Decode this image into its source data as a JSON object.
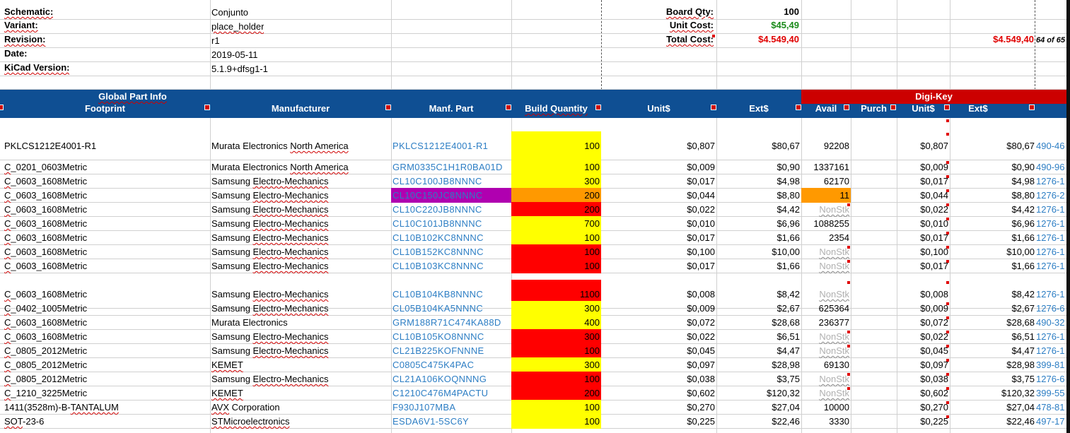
{
  "summary": {
    "schematic_label": "Schematic:",
    "schematic": "Conjunto",
    "variant_label": "Variant:",
    "variant": "place_holder",
    "revision_label": "Revision:",
    "revision": "r1",
    "date_label": "Date:",
    "date": "2019-05-11",
    "kicad_label": "KiCad Version:",
    "kicad": "5.1.9+dfsg1-1",
    "board_qty_label": "Board Qty:",
    "board_qty": "100",
    "unit_cost_label": "Unit Cost:",
    "unit_cost": "$45,49",
    "total_cost_label": "Total Cost:",
    "total_cost": "$4.549,40",
    "dk_total": "$4.549,40",
    "dk_count": "64 of 65"
  },
  "groups": {
    "global": "Global Part Info",
    "digikey": "Digi-Key"
  },
  "headers": {
    "footprint": "Footprint",
    "manufacturer": "Manufacturer",
    "manf_part": "Manf. Part",
    "build_qty": "Build Quantity",
    "unit": "Unit$",
    "ext": "Ext$",
    "avail": "Avail",
    "purch": "Purch",
    "dk_unit": "Unit$",
    "dk_ext": "Ext$"
  },
  "colors": {
    "header_blue": "#0f4f93",
    "digikey_red": "#cc0000",
    "qty_yellow": "#ffff00",
    "qty_red": "#ff0000",
    "qty_orange": "#ff9900",
    "part_magenta": "#b000b0",
    "link_blue": "#2d7ec4"
  },
  "rows": [
    {
      "fp": "PKLCS1212E4001-R1",
      "mfr": "Murata Electronics North America",
      "mpn": "PKLCS1212E4001-R1",
      "qty": "100",
      "unit": "$0,807",
      "ext": "$80,67",
      "avail": "92208",
      "dkunit": "$0,807",
      "dkext": "$80,67",
      "cat": "490-46",
      "qtyColor": "yellow"
    },
    {
      "fp": "C_0201_0603Metric",
      "mfr": "Murata Electronics North America",
      "mpn": "GRM0335C1H1R0BA01D",
      "qty": "100",
      "unit": "$0,009",
      "ext": "$0,90",
      "avail": "1337161",
      "dkunit": "$0,009",
      "dkext": "$0,90",
      "cat": "490-96",
      "qtyColor": "yellow"
    },
    {
      "fp": "C_0603_1608Metric",
      "mfr": "Samsung Electro-Mechanics",
      "mpn": "CL10C100JB8NNNC",
      "qty": "300",
      "unit": "$0,017",
      "ext": "$4,98",
      "avail": "62170",
      "dkunit": "$0,017",
      "dkext": "$4,98",
      "cat": "1276-1",
      "qtyColor": "yellow"
    },
    {
      "fp": "C_0603_1608Metric",
      "mfr": "Samsung Electro-Mechanics",
      "mpn": "CL10C150JC8NNNC",
      "qty": "200",
      "unit": "$0,044",
      "ext": "$8,80",
      "avail": "11",
      "dkunit": "$0,044",
      "dkext": "$8,80",
      "cat": "1276-2",
      "qtyColor": "orange",
      "mpnMagenta": true
    },
    {
      "fp": "C_0603_1608Metric",
      "mfr": "Samsung Electro-Mechanics",
      "mpn": "CL10C220JB8NNNC",
      "qty": "200",
      "unit": "$0,022",
      "ext": "$4,42",
      "avail": "NonStk",
      "dkunit": "$0,022",
      "dkext": "$4,42",
      "cat": "1276-1",
      "qtyColor": "red"
    },
    {
      "fp": "C_0603_1608Metric",
      "mfr": "Samsung Electro-Mechanics",
      "mpn": "CL10C101JB8NNNC",
      "qty": "700",
      "unit": "$0,010",
      "ext": "$6,96",
      "avail": "1088255",
      "dkunit": "$0,010",
      "dkext": "$6,96",
      "cat": "1276-1",
      "qtyColor": "yellow"
    },
    {
      "fp": "C_0603_1608Metric",
      "mfr": "Samsung Electro-Mechanics",
      "mpn": "CL10B102KC8NNNC",
      "qty": "100",
      "unit": "$0,017",
      "ext": "$1,66",
      "avail": "2354",
      "dkunit": "$0,017",
      "dkext": "$1,66",
      "cat": "1276-1",
      "qtyColor": "yellow"
    },
    {
      "fp": "C_0603_1608Metric",
      "mfr": "Samsung Electro-Mechanics",
      "mpn": "CL10B152KC8NNNC",
      "qty": "100",
      "unit": "$0,100",
      "ext": "$10,00",
      "avail": "NonStk",
      "dkunit": "$0,100",
      "dkext": "$10,00",
      "cat": "1276-1",
      "qtyColor": "red"
    },
    {
      "fp": "C_0603_1608Metric",
      "mfr": "Samsung Electro-Mechanics",
      "mpn": "CL10B103KC8NNNC",
      "qty": "100",
      "unit": "$0,017",
      "ext": "$1,66",
      "avail": "NonStk",
      "dkunit": "$0,017",
      "dkext": "$1,66",
      "cat": "1276-1",
      "qtyColor": "red"
    },
    {
      "fp": "C_0603_1608Metric",
      "mfr": "Samsung Electro-Mechanics",
      "mpn": "CL10B104KB8NNNC",
      "qty": "1100",
      "unit": "$0,008",
      "ext": "$8,42",
      "avail": "NonStk",
      "dkunit": "$0,008",
      "dkext": "$8,42",
      "cat": "1276-1",
      "qtyColor": "red"
    },
    {
      "fp": "C_0402_1005Metric",
      "mfr": "Samsung Electro-Mechanics",
      "mpn": "CL05B104KA5NNNC",
      "qty": "300",
      "unit": "$0,009",
      "ext": "$2,67",
      "avail": "625364",
      "dkunit": "$0,009",
      "dkext": "$2,67",
      "cat": "1276-6",
      "qtyColor": "yellow"
    },
    {
      "fp": "C_0603_1608Metric",
      "mfr": "Murata Electronics",
      "mpn": "GRM188R71C474KA88D",
      "qty": "400",
      "unit": "$0,072",
      "ext": "$28,68",
      "avail": "236377",
      "dkunit": "$0,072",
      "dkext": "$28,68",
      "cat": "490-32",
      "qtyColor": "yellow"
    },
    {
      "fp": "C_0603_1608Metric",
      "mfr": "Samsung Electro-Mechanics",
      "mpn": "CL10B105KO8NNNC",
      "qty": "300",
      "unit": "$0,022",
      "ext": "$6,51",
      "avail": "NonStk",
      "dkunit": "$0,022",
      "dkext": "$6,51",
      "cat": "1276-1",
      "qtyColor": "red"
    },
    {
      "fp": "C_0805_2012Metric",
      "mfr": "Samsung Electro-Mechanics",
      "mpn": "CL21B225KOFNNNE",
      "qty": "100",
      "unit": "$0,045",
      "ext": "$4,47",
      "avail": "NonStk",
      "dkunit": "$0,045",
      "dkext": "$4,47",
      "cat": "1276-1",
      "qtyColor": "red"
    },
    {
      "fp": "C_0805_2012Metric",
      "mfr": "KEMET",
      "mpn": "C0805C475K4PAC",
      "qty": "300",
      "unit": "$0,097",
      "ext": "$28,98",
      "avail": "69130",
      "dkunit": "$0,097",
      "dkext": "$28,98",
      "cat": "399-81",
      "qtyColor": "yellow"
    },
    {
      "fp": "C_0805_2012Metric",
      "mfr": "Samsung Electro-Mechanics",
      "mpn": "CL21A106KOQNNNG",
      "qty": "100",
      "unit": "$0,038",
      "ext": "$3,75",
      "avail": "NonStk",
      "dkunit": "$0,038",
      "dkext": "$3,75",
      "cat": "1276-6",
      "qtyColor": "red"
    },
    {
      "fp": "C_1210_3225Metric",
      "mfr": "KEMET",
      "mpn": "C1210C476M4PACTU",
      "qty": "200",
      "unit": "$0,602",
      "ext": "$120,32",
      "avail": "NonStk",
      "dkunit": "$0,602",
      "dkext": "$120,32",
      "cat": "399-55",
      "qtyColor": "red"
    },
    {
      "fp": "1411(3528m)-B-TANTALUM",
      "mfr": "AVX Corporation",
      "mpn": "F930J107MBA",
      "qty": "100",
      "unit": "$0,270",
      "ext": "$27,04",
      "avail": "10000",
      "dkunit": "$0,270",
      "dkext": "$27,04",
      "cat": "478-81",
      "qtyColor": "yellow"
    },
    {
      "fp": "SOT-23-6",
      "mfr": "STMicroelectronics",
      "mpn": "ESDA6V1-5SC6Y",
      "qty": "100",
      "unit": "$0,225",
      "ext": "$22,46",
      "avail": "3330",
      "dkunit": "$0,225",
      "dkext": "$22,46",
      "cat": "497-17",
      "qtyColor": "yellow"
    }
  ]
}
